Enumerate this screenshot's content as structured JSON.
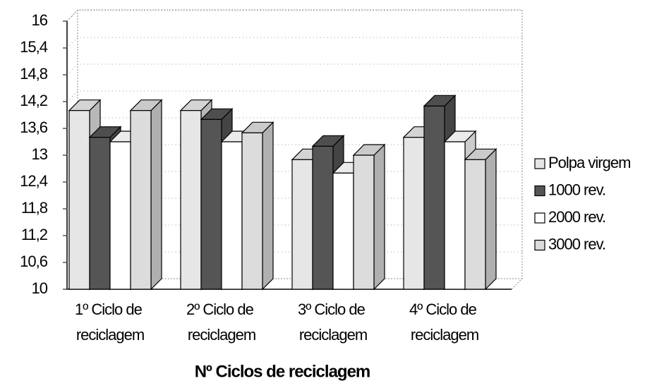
{
  "chart_data": {
    "type": "bar3d",
    "x_label": "Nº Ciclos de reciclagem",
    "categories": [
      "1º Ciclo de reciclagem",
      "2º Ciclo de reciclagem",
      "3º Ciclo de reciclagem",
      "4º Ciclo de reciclagem"
    ],
    "series": [
      {
        "name": "Polpa virgem",
        "color": "#e6e6e6",
        "values": [
          14.0,
          14.0,
          12.9,
          13.4
        ]
      },
      {
        "name": "1000 rev.",
        "color": "#555555",
        "values": [
          13.4,
          13.8,
          13.2,
          14.1
        ]
      },
      {
        "name": "2000 rev.",
        "color": "#ffffff",
        "values": [
          13.3,
          13.3,
          12.6,
          13.3
        ]
      },
      {
        "name": "3000 rev.",
        "color": "#dcdcdc",
        "values": [
          14.0,
          13.5,
          13.0,
          12.9
        ]
      }
    ],
    "ylim": [
      10,
      16
    ],
    "yticks": [
      10,
      {
        "value": 10.6,
        "label": "10,6"
      },
      {
        "value": 11.2,
        "label": "11,2"
      },
      {
        "value": 11.8,
        "label": "11,8"
      },
      {
        "value": 12.4,
        "label": "12,4"
      },
      13,
      {
        "value": 13.6,
        "label": "13,6"
      },
      {
        "value": 14.2,
        "label": "14,2"
      },
      {
        "value": 14.8,
        "label": "14,8"
      },
      {
        "value": 15.4,
        "label": "15,4"
      },
      16
    ],
    "legend": "right"
  }
}
